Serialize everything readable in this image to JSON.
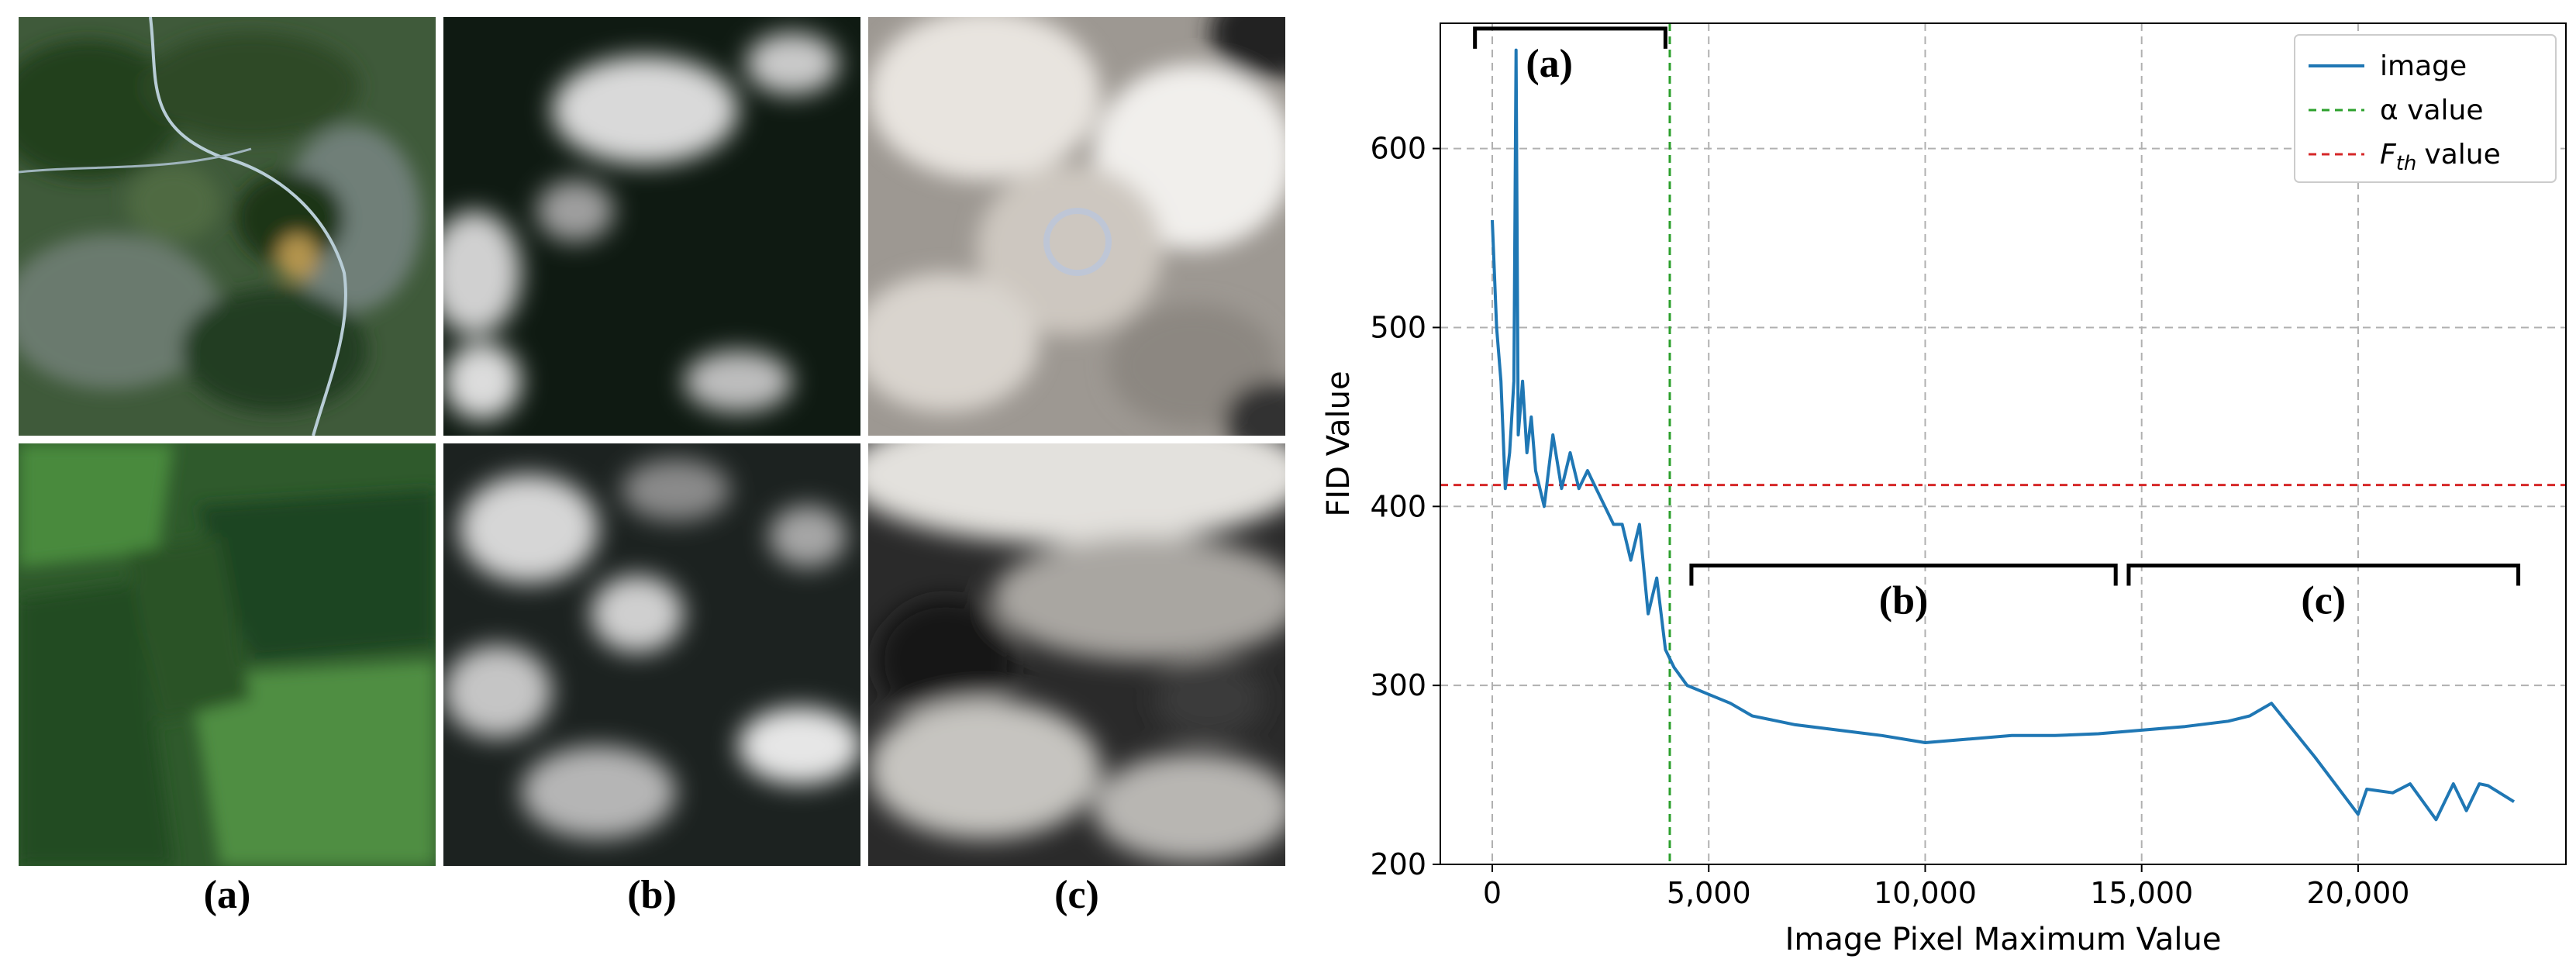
{
  "panels": [
    {
      "label": "(a)",
      "images": [
        "forest-land-aerial-image",
        "green-forest-aerial-image"
      ]
    },
    {
      "label": "(b)",
      "images": [
        "scattered-clouds-dark-image",
        "scattered-clouds-dark-image-2"
      ]
    },
    {
      "label": "(c)",
      "images": [
        "bright-cloud-cover-image",
        "dense-cloud-cover-image"
      ]
    }
  ],
  "colors": {
    "series": "#1f77b4",
    "alpha_line": "#2ca02c",
    "fth_line": "#d62728",
    "grid": "#b0b0b0"
  },
  "chart_data": {
    "type": "line",
    "title": "",
    "xlabel": "Image Pixel Maximum Value",
    "ylabel": "FID Value",
    "xlim": [
      -1200,
      24800
    ],
    "ylim": [
      200,
      670
    ],
    "xticks": [
      0,
      5000,
      10000,
      15000,
      20000
    ],
    "xtick_labels": [
      "0",
      "5,000",
      "10,000",
      "15,000",
      "20,000"
    ],
    "yticks": [
      200,
      300,
      400,
      500,
      600
    ],
    "ytick_labels": [
      "200",
      "300",
      "400",
      "500",
      "600"
    ],
    "grid": true,
    "legend_position": "top-right",
    "series": [
      {
        "name": "image",
        "x": [
          0,
          100,
          200,
          300,
          400,
          500,
          550,
          600,
          700,
          800,
          900,
          1000,
          1200,
          1400,
          1600,
          1800,
          2000,
          2200,
          2400,
          2600,
          2800,
          3000,
          3200,
          3400,
          3600,
          3800,
          4000,
          4200,
          4500,
          5000,
          5500,
          6000,
          7000,
          8000,
          9000,
          10000,
          11000,
          12000,
          13000,
          14000,
          15000,
          16000,
          17000,
          17500,
          18000,
          19000,
          20000,
          20200,
          20800,
          21200,
          21800,
          22200,
          22500,
          22800,
          23000,
          23600
        ],
        "y": [
          560,
          500,
          470,
          410,
          430,
          470,
          655,
          440,
          470,
          430,
          450,
          420,
          400,
          440,
          410,
          430,
          410,
          420,
          410,
          400,
          390,
          390,
          370,
          390,
          340,
          360,
          320,
          310,
          300,
          295,
          290,
          283,
          278,
          275,
          272,
          268,
          270,
          272,
          272,
          273,
          275,
          277,
          280,
          283,
          290,
          260,
          228,
          242,
          240,
          245,
          225,
          245,
          230,
          245,
          244,
          235
        ]
      }
    ],
    "reference_lines": [
      {
        "name": "α value",
        "orientation": "vertical",
        "value": 4100
      },
      {
        "name": "value",
        "orientation": "horizontal",
        "value": 412
      }
    ],
    "legend": [
      {
        "text": "image",
        "style": "solid"
      },
      {
        "text": "α value",
        "style": "dashed"
      },
      {
        "text": "value",
        "symbol": "F",
        "subscript": "th",
        "style": "dashed"
      }
    ],
    "annotations": [
      {
        "text": "(a)",
        "range": [
          -400,
          4000
        ],
        "value": 667
      },
      {
        "text": "(b)",
        "range": [
          4600,
          14400
        ],
        "value": 367
      },
      {
        "text": "(c)",
        "range": [
          14700,
          23700
        ],
        "value": 367
      }
    ]
  }
}
